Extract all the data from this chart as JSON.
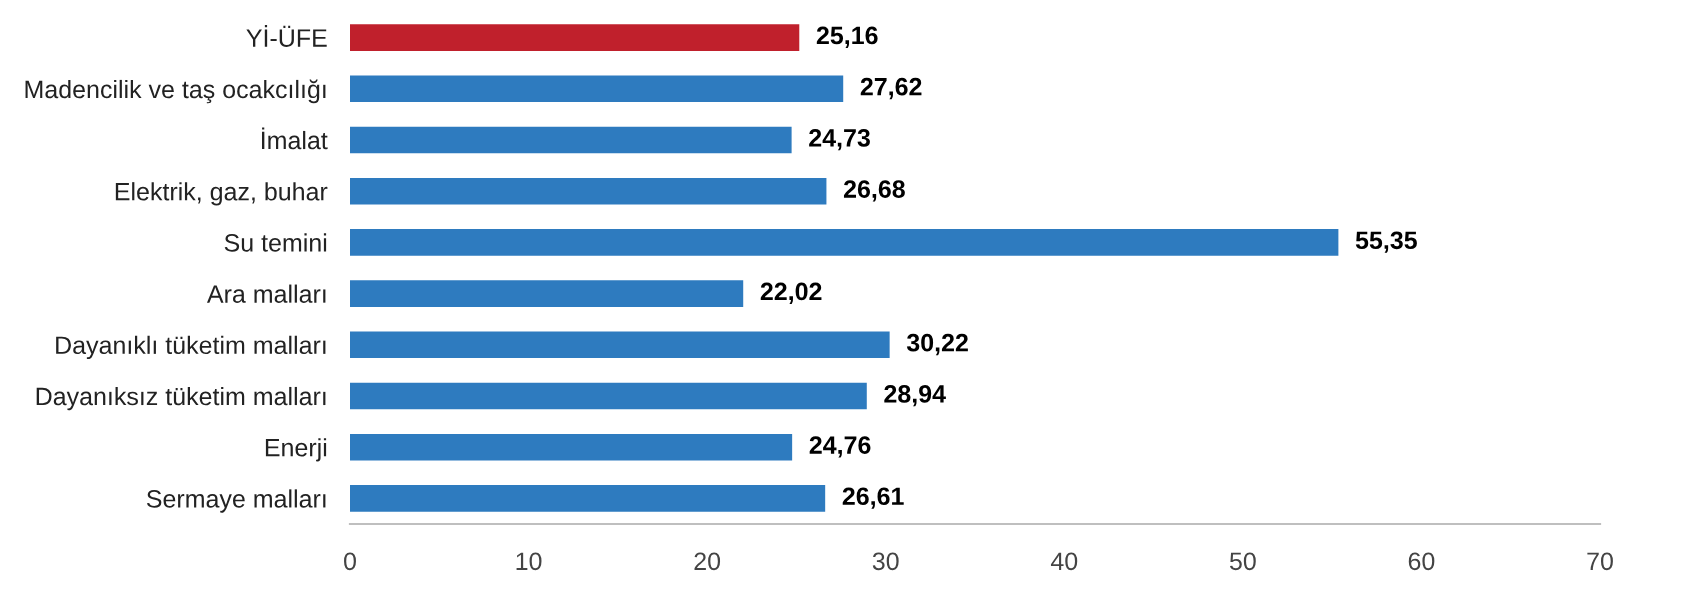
{
  "chart_data": {
    "type": "bar",
    "orientation": "horizontal",
    "categories": [
      "Yİ-ÜFE",
      "Madencilik ve taş ocakcılığı",
      "İmalat",
      "Elektrik, gaz, buhar",
      "Su temini",
      "Ara malları",
      "Dayanıklı tüketim malları",
      "Dayanıksız tüketim malları",
      "Enerji",
      "Sermaye malları"
    ],
    "values": [
      25.16,
      27.62,
      24.73,
      26.68,
      55.35,
      22.02,
      30.22,
      28.94,
      24.76,
      26.61
    ],
    "colors": [
      "#c0202c",
      "#2e7bbf",
      "#2e7bbf",
      "#2e7bbf",
      "#2e7bbf",
      "#2e7bbf",
      "#2e7bbf",
      "#2e7bbf",
      "#2e7bbf",
      "#2e7bbf"
    ],
    "value_labels": [
      "25,16",
      "27,62",
      "24,73",
      "26,68",
      "55,35",
      "22,02",
      "30,22",
      "28,94",
      "24,76",
      "26,61"
    ],
    "xlim": [
      0,
      70
    ],
    "xticks": [
      0,
      10,
      20,
      30,
      40,
      50,
      60,
      70
    ],
    "grid": false,
    "legend": false
  }
}
